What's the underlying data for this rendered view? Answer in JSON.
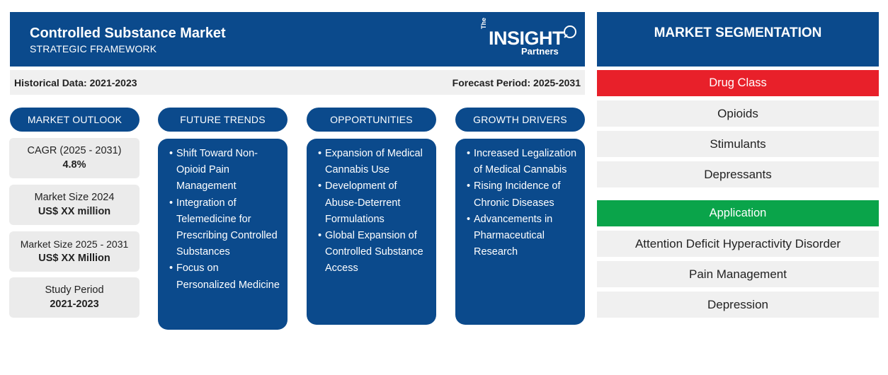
{
  "header": {
    "title": "Controlled Substance Market",
    "subtitle": "STRATEGIC FRAMEWORK",
    "logo": {
      "the": "The",
      "insight": "INSIGHT",
      "partners": "Partners"
    }
  },
  "period": {
    "historical": "Historical Data: 2021-2023",
    "forecast": "Forecast Period: 2025-2031"
  },
  "columns": {
    "outlook": {
      "label": "MARKET OUTLOOK",
      "cards": [
        {
          "label": "CAGR (2025 - 2031)",
          "value": "4.8%"
        },
        {
          "label": "Market Size 2024",
          "value": "US$ XX million"
        },
        {
          "label": "Market Size 2025 - 2031",
          "value": "US$ XX Million"
        },
        {
          "label": "Study Period",
          "value": "2021-2023"
        }
      ]
    },
    "trends": {
      "label": "FUTURE TRENDS",
      "items": [
        "Shift Toward Non-Opioid Pain Management",
        "Integration of Telemedicine for Prescribing Controlled Substances",
        "Focus on Personalized Medicine"
      ]
    },
    "opportunities": {
      "label": "OPPORTUNITIES",
      "items": [
        "Expansion of Medical Cannabis Use",
        "Development of Abuse-Deterrent Formulations",
        "Global Expansion of Controlled Substance Access"
      ]
    },
    "drivers": {
      "label": "GROWTH DRIVERS",
      "items": [
        "Increased Legalization of Medical Cannabis",
        "Rising Incidence of Chronic Diseases",
        "Advancements in Pharmaceutical Research"
      ]
    }
  },
  "segmentation": {
    "title": "MARKET SEGMENTATION",
    "groups": [
      {
        "name": "Drug Class",
        "color": "#e8202a",
        "items": [
          "Opioids",
          "Stimulants",
          "Depressants"
        ]
      },
      {
        "name": "Application",
        "color": "#0aa44a",
        "items": [
          "Attention Deficit Hyperactivity Disorder",
          "Pain Management",
          "Depression"
        ]
      }
    ]
  }
}
